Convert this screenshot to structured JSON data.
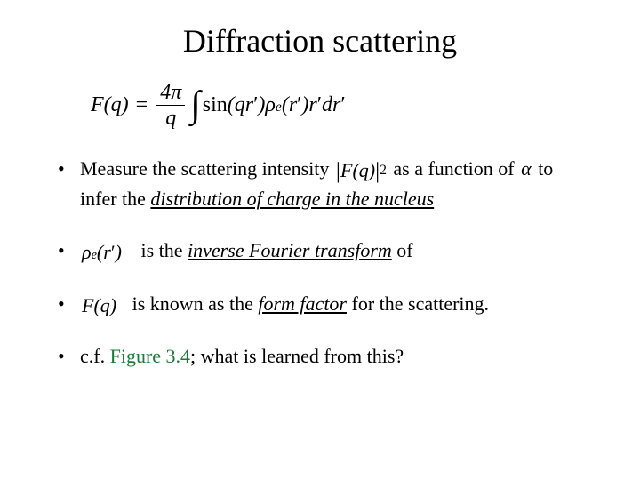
{
  "title": "Diffraction scattering",
  "equation": {
    "lhs_F": "F",
    "lhs_q": "q",
    "frac_num_4": "4",
    "frac_num_pi": "π",
    "frac_den": "q",
    "sin": "sin",
    "arg_q": "q",
    "arg_r": "r",
    "arg_prime1": "′",
    "rho": "ρ",
    "rho_sub": "e",
    "r_tail": "r",
    "prime2": "′",
    "tail_r": "r",
    "tail_prime": "′",
    "tail_dr": "dr",
    "tail_dprime": "′"
  },
  "bullets": {
    "b1_pre": "Measure the scattering intensity ",
    "b1_mag_F": "F",
    "b1_mag_q": "q",
    "b1_exp": "2",
    "b1_mid": " as a function of ",
    "b1_alpha": "α",
    "b1_line2a": " to infer the ",
    "b1_line2b": "distribution of charge in the nucleus",
    "b2_rho": "ρ",
    "b2_sub": "e",
    "b2_r": "r",
    "b2_prime": "′",
    "b2_text1": "  is the ",
    "b2_text2": "inverse Fourier transform",
    "b2_text3": " of",
    "b3_F": "F",
    "b3_q": "q",
    "b3_text1": " is known as the ",
    "b3_text2": "form factor",
    "b3_text3": " for the scattering.",
    "b4_text1": "c.f. ",
    "b4_fig": "Figure 3.4",
    "b4_text2": "; what is learned from this?"
  }
}
